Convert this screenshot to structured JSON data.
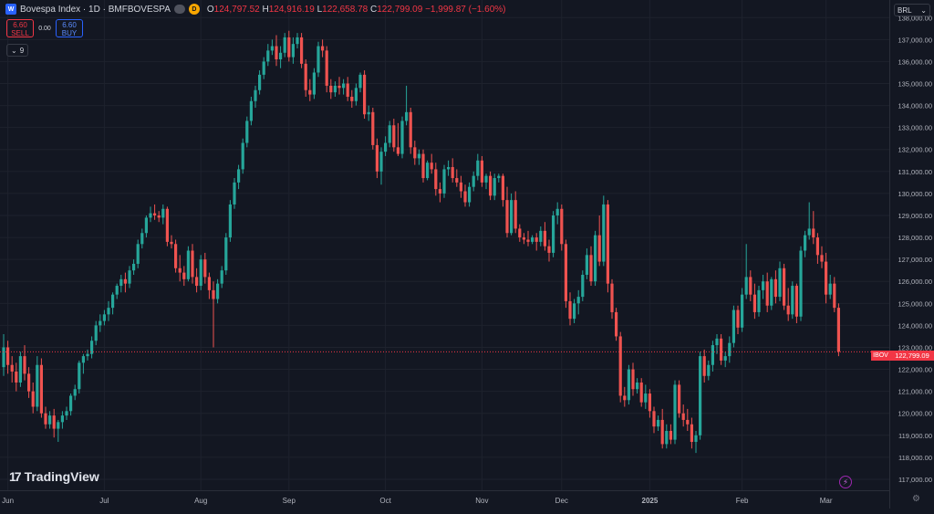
{
  "header": {
    "title": "Bovespa Index · 1D · BMFBOVESPA",
    "badge_letter": "D",
    "open_key": "O",
    "open": "124,797.52",
    "high_key": "H",
    "high": "124,916.19",
    "low_key": "L",
    "low": "122,658.78",
    "close_key": "C",
    "close": "122,799.09",
    "change": "−1,999.87 (−1.60%)"
  },
  "trade": {
    "sell_price": "6.60",
    "sell_label": "SELL",
    "spread": "0.00",
    "buy_price": "6.60",
    "buy_label": "BUY"
  },
  "indicators": {
    "chevron": "⌄",
    "count": "9"
  },
  "currency": {
    "label": "BRL",
    "chevron": "⌄"
  },
  "price_tag": {
    "symbol": "IBOV",
    "value": "122,799.09"
  },
  "brand": {
    "name": "TradingView",
    "mark": "17"
  },
  "colors": {
    "up": "#26a69a",
    "down": "#ef5350",
    "bg": "#131722",
    "grid": "#1e222d"
  },
  "chart_data": {
    "type": "candlestick",
    "ylim": [
      116500,
      138800
    ],
    "ytick_values": [
      117000,
      118000,
      119000,
      120000,
      121000,
      122000,
      123000,
      124000,
      125000,
      126000,
      127000,
      128000,
      129000,
      130000,
      131000,
      132000,
      133000,
      134000,
      135000,
      136000,
      137000,
      138000
    ],
    "ytick_labels": [
      "117,000.00",
      "118,000.00",
      "119,000.00",
      "120,000.00",
      "121,000.00",
      "122,000.00",
      "123,000.00",
      "124,000.00",
      "125,000.00",
      "126,000.00",
      "127,000.00",
      "128,000.00",
      "129,000.00",
      "130,000.00",
      "131,000.00",
      "132,000.00",
      "133,000.00",
      "134,000.00",
      "135,000.00",
      "136,000.00",
      "137,000.00",
      "138,000.00"
    ],
    "xticks": [
      {
        "label": "Jun",
        "bar": 1
      },
      {
        "label": "Jul",
        "bar": 24
      },
      {
        "label": "Aug",
        "bar": 47
      },
      {
        "label": "Sep",
        "bar": 68
      },
      {
        "label": "Oct",
        "bar": 91
      },
      {
        "label": "Nov",
        "bar": 114
      },
      {
        "label": "Dec",
        "bar": 133
      },
      {
        "label": "2025",
        "bar": 154
      },
      {
        "label": "Feb",
        "bar": 176
      },
      {
        "label": "Mar",
        "bar": 196
      }
    ],
    "last_price": 122799.09,
    "ohlc": [
      [
        122100,
        123600,
        121700,
        123000
      ],
      [
        123000,
        123300,
        121800,
        122200
      ],
      [
        122200,
        122600,
        121400,
        121900
      ],
      [
        121900,
        122300,
        121000,
        121400
      ],
      [
        121400,
        122800,
        121200,
        122600
      ],
      [
        122600,
        123100,
        121500,
        121800
      ],
      [
        121800,
        122100,
        120700,
        121000
      ],
      [
        121000,
        121400,
        120000,
        120300
      ],
      [
        120300,
        122600,
        120100,
        122200
      ],
      [
        122200,
        122500,
        119800,
        120000
      ],
      [
        120000,
        120300,
        119300,
        119500
      ],
      [
        119500,
        120100,
        119300,
        119900
      ],
      [
        119900,
        120200,
        118900,
        119300
      ],
      [
        119300,
        119700,
        118700,
        119600
      ],
      [
        119600,
        120100,
        119300,
        119900
      ],
      [
        119900,
        120300,
        119700,
        120100
      ],
      [
        120100,
        120900,
        119900,
        120800
      ],
      [
        120800,
        121300,
        120600,
        121100
      ],
      [
        121100,
        122400,
        120900,
        122300
      ],
      [
        122300,
        122700,
        121800,
        122600
      ],
      [
        122600,
        122900,
        122400,
        122700
      ],
      [
        122700,
        123500,
        122500,
        123300
      ],
      [
        123300,
        124200,
        123100,
        124000
      ],
      [
        124000,
        124500,
        123700,
        124200
      ],
      [
        124200,
        124700,
        124000,
        124500
      ],
      [
        124500,
        125100,
        124200,
        124800
      ],
      [
        124800,
        125500,
        124500,
        125400
      ],
      [
        125400,
        125900,
        125200,
        125800
      ],
      [
        125800,
        126300,
        125500,
        126100
      ],
      [
        126100,
        126400,
        125500,
        125900
      ],
      [
        125900,
        126700,
        125700,
        126500
      ],
      [
        126500,
        127000,
        126300,
        126800
      ],
      [
        126800,
        127900,
        126600,
        127700
      ],
      [
        127700,
        128400,
        127500,
        128200
      ],
      [
        128200,
        129000,
        128000,
        128900
      ],
      [
        128900,
        129400,
        128700,
        129100
      ],
      [
        129100,
        129500,
        128800,
        129000
      ],
      [
        129000,
        129200,
        128700,
        128900
      ],
      [
        128900,
        129500,
        128600,
        129300
      ],
      [
        129300,
        129400,
        127600,
        127800
      ],
      [
        127800,
        128100,
        127500,
        127700
      ],
      [
        127700,
        127900,
        126400,
        126600
      ],
      [
        126600,
        127200,
        126000,
        126400
      ],
      [
        126400,
        126700,
        125800,
        126100
      ],
      [
        126100,
        127600,
        126000,
        127400
      ],
      [
        127400,
        127700,
        125900,
        126200
      ],
      [
        126200,
        126600,
        125500,
        125800
      ],
      [
        125800,
        127200,
        125600,
        127000
      ],
      [
        127000,
        127300,
        125900,
        126200
      ],
      [
        126200,
        126400,
        125200,
        125600
      ],
      [
        125600,
        126000,
        123000,
        125200
      ],
      [
        125200,
        126100,
        125000,
        125900
      ],
      [
        125900,
        126700,
        125700,
        126500
      ],
      [
        126500,
        128200,
        126300,
        128000
      ],
      [
        128000,
        129700,
        127800,
        129500
      ],
      [
        129500,
        130700,
        129300,
        130500
      ],
      [
        130500,
        131300,
        130200,
        131100
      ],
      [
        131100,
        132500,
        130900,
        132300
      ],
      [
        132300,
        133500,
        132100,
        133300
      ],
      [
        133300,
        134400,
        133100,
        134200
      ],
      [
        134200,
        134900,
        133900,
        134700
      ],
      [
        134700,
        135600,
        134500,
        135400
      ],
      [
        135400,
        136200,
        135200,
        136000
      ],
      [
        136000,
        136800,
        135800,
        136500
      ],
      [
        136500,
        137000,
        136300,
        136700
      ],
      [
        136700,
        137200,
        135800,
        136100
      ],
      [
        136100,
        136700,
        135700,
        136400
      ],
      [
        136400,
        137300,
        136200,
        137100
      ],
      [
        137100,
        137400,
        136000,
        136200
      ],
      [
        136200,
        137100,
        135900,
        136800
      ],
      [
        136800,
        137300,
        136600,
        137100
      ],
      [
        137100,
        137300,
        135700,
        135900
      ],
      [
        135900,
        136100,
        134400,
        134700
      ],
      [
        134700,
        135200,
        134200,
        134500
      ],
      [
        134500,
        135700,
        134300,
        135500
      ],
      [
        135500,
        136900,
        135300,
        136700
      ],
      [
        136700,
        137000,
        136200,
        136500
      ],
      [
        136500,
        136700,
        134600,
        134900
      ],
      [
        134900,
        135200,
        134300,
        134600
      ],
      [
        134600,
        135100,
        134400,
        134900
      ],
      [
        134900,
        135300,
        134500,
        134800
      ],
      [
        134800,
        135200,
        134500,
        135000
      ],
      [
        135000,
        135300,
        134200,
        134400
      ],
      [
        134400,
        134700,
        133900,
        134200
      ],
      [
        134200,
        135000,
        134000,
        134800
      ],
      [
        134800,
        135500,
        134600,
        135400
      ],
      [
        135400,
        135600,
        133400,
        133600
      ],
      [
        133600,
        134000,
        133300,
        133700
      ],
      [
        133700,
        133900,
        132000,
        132200
      ],
      [
        132200,
        132500,
        130700,
        131000
      ],
      [
        131000,
        132100,
        130400,
        131900
      ],
      [
        131900,
        132600,
        131700,
        132300
      ],
      [
        132300,
        133300,
        132100,
        133100
      ],
      [
        133100,
        133400,
        131900,
        132100
      ],
      [
        132100,
        133200,
        131700,
        131800
      ],
      [
        131800,
        133500,
        131600,
        133300
      ],
      [
        133300,
        134900,
        133100,
        133700
      ],
      [
        133700,
        133900,
        131800,
        132100
      ],
      [
        132100,
        132400,
        131300,
        131600
      ],
      [
        131600,
        132000,
        131300,
        131800
      ],
      [
        131800,
        132000,
        130500,
        130700
      ],
      [
        130700,
        131500,
        130600,
        131400
      ],
      [
        131400,
        131800,
        130900,
        131100
      ],
      [
        131100,
        131400,
        129900,
        130200
      ],
      [
        130200,
        130500,
        129600,
        130000
      ],
      [
        130000,
        131300,
        129800,
        131100
      ],
      [
        131100,
        131500,
        130800,
        131200
      ],
      [
        131200,
        131600,
        130500,
        130700
      ],
      [
        130700,
        131100,
        130300,
        130500
      ],
      [
        130500,
        130800,
        129800,
        130100
      ],
      [
        130100,
        130400,
        129400,
        129600
      ],
      [
        129600,
        130500,
        129400,
        130300
      ],
      [
        130300,
        131000,
        130100,
        130800
      ],
      [
        130800,
        131800,
        130600,
        131500
      ],
      [
        131500,
        131700,
        130300,
        130500
      ],
      [
        130500,
        130900,
        130200,
        130800
      ],
      [
        130800,
        131000,
        129700,
        129900
      ],
      [
        129900,
        130900,
        129700,
        130700
      ],
      [
        130700,
        130900,
        130500,
        130800
      ],
      [
        130800,
        130900,
        129400,
        129700
      ],
      [
        129700,
        130300,
        128000,
        128200
      ],
      [
        128200,
        130000,
        128100,
        129700
      ],
      [
        129700,
        130100,
        128200,
        128400
      ],
      [
        128400,
        128600,
        127800,
        128000
      ],
      [
        128000,
        128200,
        127700,
        127900
      ],
      [
        127900,
        128300,
        127600,
        127800
      ],
      [
        127800,
        128100,
        127700,
        128000
      ],
      [
        128000,
        128200,
        127400,
        127800
      ],
      [
        127800,
        128500,
        127600,
        128300
      ],
      [
        128300,
        128700,
        127400,
        127600
      ],
      [
        127600,
        127900,
        126900,
        127300
      ],
      [
        127300,
        129200,
        127100,
        129000
      ],
      [
        129000,
        129600,
        128600,
        129300
      ],
      [
        129300,
        129500,
        127400,
        127700
      ],
      [
        127700,
        127900,
        124800,
        125100
      ],
      [
        125100,
        125500,
        124000,
        124300
      ],
      [
        124300,
        125200,
        124100,
        125000
      ],
      [
        125000,
        125600,
        124500,
        125300
      ],
      [
        125300,
        126500,
        125100,
        126300
      ],
      [
        126300,
        127500,
        126100,
        127200
      ],
      [
        127200,
        127600,
        125800,
        126000
      ],
      [
        126000,
        128300,
        125800,
        128100
      ],
      [
        128100,
        129000,
        126700,
        126900
      ],
      [
        126900,
        129900,
        126700,
        129500
      ],
      [
        129500,
        129700,
        125500,
        125900
      ],
      [
        125900,
        126100,
        124300,
        124600
      ],
      [
        124600,
        124800,
        123300,
        123500
      ],
      [
        123500,
        123700,
        120500,
        120800
      ],
      [
        120800,
        121200,
        120300,
        120600
      ],
      [
        120600,
        122200,
        120400,
        122000
      ],
      [
        122000,
        122300,
        120800,
        121100
      ],
      [
        121100,
        121600,
        120900,
        121400
      ],
      [
        121400,
        121600,
        120300,
        120500
      ],
      [
        120500,
        121300,
        120200,
        120900
      ],
      [
        120900,
        121100,
        119800,
        120100
      ],
      [
        120100,
        120300,
        119100,
        119400
      ],
      [
        119400,
        119900,
        119200,
        119700
      ],
      [
        119700,
        120200,
        118400,
        118600
      ],
      [
        118600,
        119500,
        118400,
        119200
      ],
      [
        119200,
        119500,
        118600,
        118800
      ],
      [
        118800,
        121500,
        118600,
        121300
      ],
      [
        121300,
        121500,
        119800,
        120000
      ],
      [
        120000,
        120400,
        119400,
        119700
      ],
      [
        119700,
        120200,
        119200,
        119500
      ],
      [
        119500,
        119800,
        118400,
        118700
      ],
      [
        118700,
        119200,
        118200,
        119000
      ],
      [
        119000,
        122800,
        118800,
        122600
      ],
      [
        122600,
        122900,
        121400,
        121700
      ],
      [
        121700,
        122400,
        121500,
        122200
      ],
      [
        122200,
        123300,
        121900,
        123100
      ],
      [
        123100,
        123600,
        122700,
        123400
      ],
      [
        123400,
        123600,
        122200,
        122400
      ],
      [
        122400,
        122800,
        122100,
        122600
      ],
      [
        122600,
        123500,
        122300,
        123200
      ],
      [
        123200,
        124900,
        123000,
        124700
      ],
      [
        124700,
        124900,
        123600,
        123900
      ],
      [
        123900,
        125700,
        123700,
        125400
      ],
      [
        125400,
        127700,
        125200,
        126200
      ],
      [
        126200,
        126500,
        125100,
        125400
      ],
      [
        125400,
        125900,
        124300,
        124600
      ],
      [
        124600,
        125800,
        124400,
        125600
      ],
      [
        125600,
        126300,
        125200,
        126000
      ],
      [
        126000,
        126400,
        124600,
        124900
      ],
      [
        124900,
        126200,
        124700,
        126100
      ],
      [
        126100,
        126500,
        125000,
        125300
      ],
      [
        125300,
        126900,
        125100,
        126600
      ],
      [
        126600,
        126800,
        124700,
        124900
      ],
      [
        124900,
        125700,
        124200,
        124500
      ],
      [
        124500,
        126000,
        124300,
        125800
      ],
      [
        125800,
        125900,
        124100,
        124400
      ],
      [
        124400,
        127600,
        124200,
        127400
      ],
      [
        127400,
        128300,
        127100,
        128100
      ],
      [
        128100,
        129600,
        127900,
        128400
      ],
      [
        128400,
        129200,
        127700,
        128000
      ],
      [
        128000,
        128200,
        126800,
        127200
      ],
      [
        127200,
        127600,
        126600,
        126900
      ],
      [
        126900,
        127300,
        125000,
        125400
      ],
      [
        125400,
        126300,
        125200,
        125900
      ],
      [
        125900,
        126200,
        124600,
        124800
      ],
      [
        124800,
        125000,
        122600,
        122800
      ]
    ]
  }
}
